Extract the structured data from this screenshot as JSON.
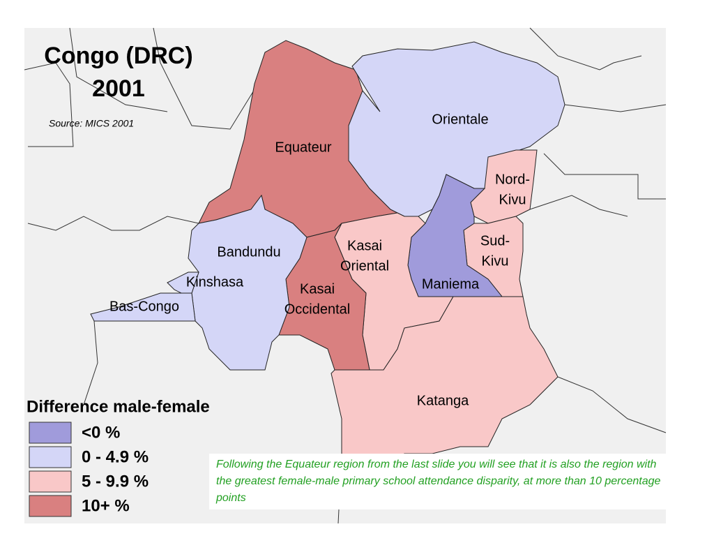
{
  "title_lines": [
    "Congo (DRC)",
    "2001"
  ],
  "source": "Source: MICS 2001",
  "regions": [
    {
      "lines": [
        "Equateur"
      ],
      "color": "#d98080"
    },
    {
      "lines": [
        "Orientale"
      ],
      "color": "#d4d6f7"
    },
    {
      "lines": [
        "Nord-",
        "Kivu"
      ],
      "color": "#f9c8c8"
    },
    {
      "lines": [
        "Sud-",
        "Kivu"
      ],
      "color": "#f9c8c8"
    },
    {
      "lines": [
        "Maniema"
      ],
      "color": "#a09bdb"
    },
    {
      "lines": [
        "Kasai",
        "Oriental"
      ],
      "color": "#f9c8c8"
    },
    {
      "lines": [
        "Kasai",
        "Occidental"
      ],
      "color": "#d98080"
    },
    {
      "lines": [
        "Katanga"
      ],
      "color": "#f9c8c8"
    },
    {
      "lines": [
        "Bandundu"
      ],
      "color": "#d4d6f7"
    },
    {
      "lines": [
        "Kinshasa"
      ],
      "color": "#d4d6f7"
    },
    {
      "lines": [
        "Bas-Congo"
      ],
      "color": "#d4d6f7"
    }
  ],
  "legend": {
    "title": "Difference male-female",
    "items": [
      {
        "label": "<0 %",
        "color": "#a09bdb"
      },
      {
        "label": "0 - 4.9 %",
        "color": "#d4d6f7"
      },
      {
        "label": "5 - 9.9 %",
        "color": "#f9c8c8"
      },
      {
        "label": "10+ %",
        "color": "#d98080"
      }
    ]
  },
  "caption": "Following the Equateur region from the last slide you will see that it is also the region with the greatest female-male primary school attendance disparity, at more than 10 percentage points"
}
